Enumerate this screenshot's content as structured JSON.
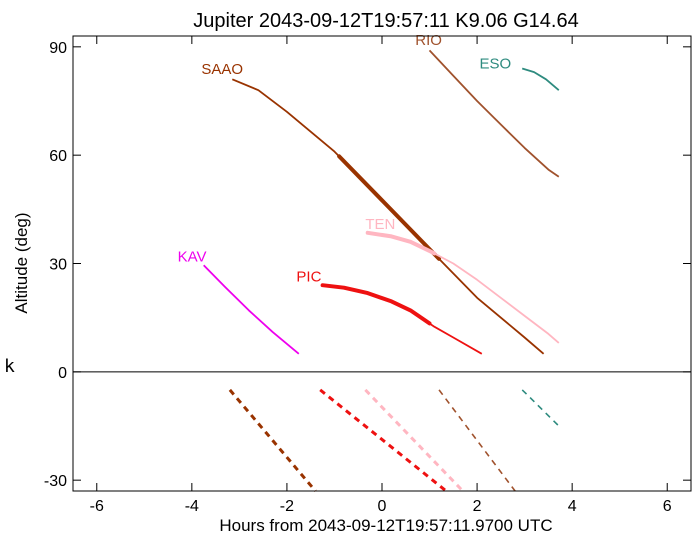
{
  "chart_data": {
    "type": "line",
    "title": "Jupiter 2043-09-12T19:57:11  K9.06  G14.64",
    "xlabel": "Hours from 2043-09-12T19:57:11.9700 UTC",
    "ylabel": "Altitude (deg)",
    "side_label": "k",
    "xlim": [
      -6.5,
      6.5
    ],
    "ylim": [
      -33,
      93
    ],
    "xticks": [
      -6,
      -4,
      -2,
      0,
      2,
      4,
      6
    ],
    "yticks": [
      -30,
      0,
      30,
      60,
      90
    ],
    "grid": false,
    "zero_line": true,
    "series": [
      {
        "name": "SAAO",
        "color": "#993300",
        "label_at": [
          -3.8,
          82.5
        ],
        "x": [
          -3.15,
          -2.6,
          -2.0,
          -1.5,
          -1.0,
          0.0,
          1.0,
          2.0,
          3.0,
          3.4
        ],
        "y": [
          81,
          78,
          72,
          66.5,
          61,
          47.5,
          34,
          20.5,
          9.5,
          5
        ],
        "thick": [
          -0.9,
          1.2
        ],
        "dashed_x": [
          -3.2,
          -1.4
        ],
        "dashed_y": [
          -5,
          -33
        ]
      },
      {
        "name": "RIO",
        "color": "#a0522d",
        "label_at": [
          0.7,
          90.5
        ],
        "x": [
          1.0,
          1.5,
          2.0,
          2.5,
          3.0,
          3.5,
          3.72
        ],
        "y": [
          89,
          82,
          75,
          68.5,
          62,
          56,
          54
        ],
        "dashed_x": [
          1.2,
          2.8
        ],
        "dashed_y": [
          -5,
          -33
        ]
      },
      {
        "name": "ESO",
        "color": "#2e8b7f",
        "label_at": [
          2.05,
          84
        ],
        "x": [
          2.95,
          3.2,
          3.45,
          3.72
        ],
        "y": [
          84,
          83,
          81,
          78
        ],
        "dashed_x": [
          2.95,
          3.72
        ],
        "dashed_y": [
          -5,
          -15
        ]
      },
      {
        "name": "TEN",
        "color": "#ffb6c1",
        "label_at": [
          -0.35,
          39.5
        ],
        "x": [
          -0.3,
          0.2,
          0.6,
          1.0,
          1.5,
          2.0,
          2.5,
          3.0,
          3.5,
          3.72
        ],
        "y": [
          38.5,
          37.5,
          36,
          33.5,
          30,
          25.5,
          20.5,
          15.5,
          10.5,
          8
        ],
        "thick": [
          -0.3,
          1.1
        ],
        "dashed_x": [
          -0.35,
          1.7
        ],
        "dashed_y": [
          -5,
          -33
        ]
      },
      {
        "name": "PIC",
        "color": "#ee1111",
        "label_at": [
          -1.8,
          25
        ],
        "x": [
          -1.25,
          -0.8,
          -0.3,
          0.2,
          0.6,
          1.1,
          1.5,
          2.1
        ],
        "y": [
          24,
          23.3,
          21.8,
          19.5,
          17,
          12.5,
          9.5,
          5
        ],
        "thick": [
          -1.25,
          1.0
        ],
        "dashed_x": [
          -1.3,
          1.35
        ],
        "dashed_y": [
          -5,
          -33
        ]
      },
      {
        "name": "KAV",
        "color": "#ee00ee",
        "label_at": [
          -4.3,
          30.5
        ],
        "x": [
          -3.75,
          -3.3,
          -2.8,
          -2.3,
          -1.75
        ],
        "y": [
          29.5,
          23.5,
          17,
          11,
          5
        ]
      }
    ]
  }
}
